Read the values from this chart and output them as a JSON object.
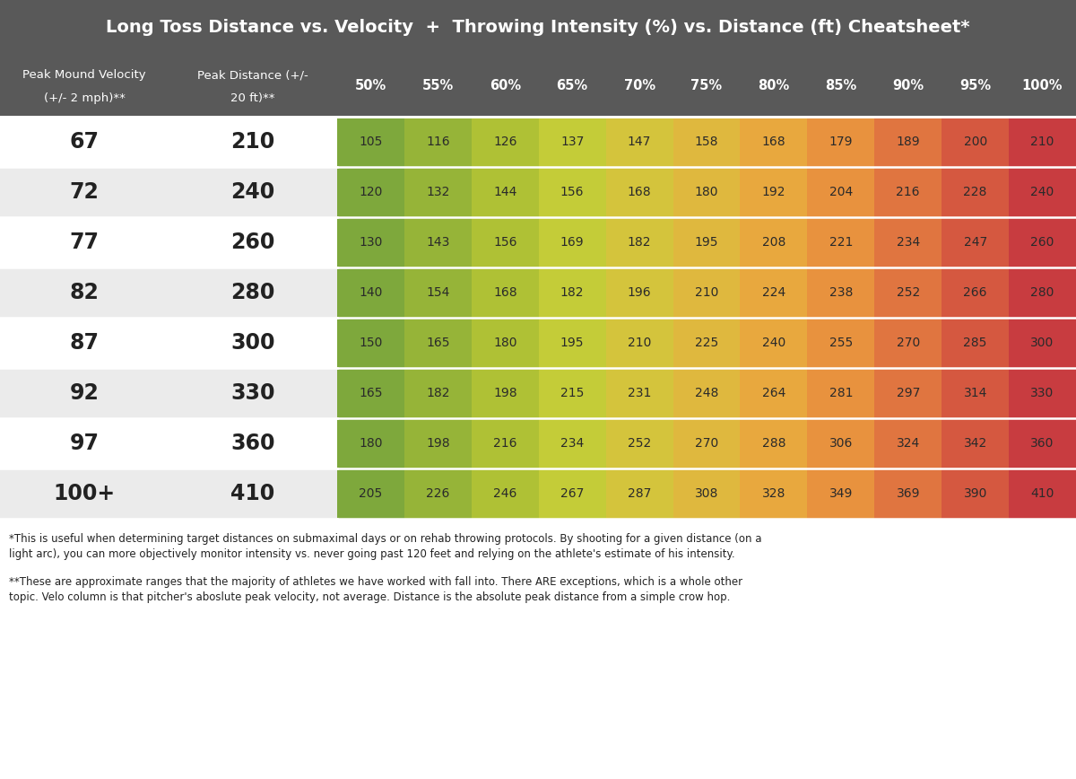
{
  "title": "Long Toss Distance vs. Velocity  +  Throwing Intensity (%) vs. Distance (ft) Cheatsheet*",
  "title_color": "#FFFFFF",
  "header_bg": "#595959",
  "col1_header_line1": "Peak Mound Velocity",
  "col1_header_line2": "(+/- 2 mph)**",
  "col2_header_line1": "Peak Distance (+/-",
  "col2_header_line2": "20 ft)**",
  "intensity_headers": [
    "50%",
    "55%",
    "60%",
    "65%",
    "70%",
    "75%",
    "80%",
    "85%",
    "90%",
    "95%",
    "100%"
  ],
  "velocities": [
    "67",
    "72",
    "77",
    "82",
    "87",
    "92",
    "97",
    "100+"
  ],
  "peak_distances": [
    "210",
    "240",
    "260",
    "280",
    "300",
    "330",
    "360",
    "410"
  ],
  "table_data": [
    [
      105,
      116,
      126,
      137,
      147,
      158,
      168,
      179,
      189,
      200,
      210
    ],
    [
      120,
      132,
      144,
      156,
      168,
      180,
      192,
      204,
      216,
      228,
      240
    ],
    [
      130,
      143,
      156,
      169,
      182,
      195,
      208,
      221,
      234,
      247,
      260
    ],
    [
      140,
      154,
      168,
      182,
      196,
      210,
      224,
      238,
      252,
      266,
      280
    ],
    [
      150,
      165,
      180,
      195,
      210,
      225,
      240,
      255,
      270,
      285,
      300
    ],
    [
      165,
      182,
      198,
      215,
      231,
      248,
      264,
      281,
      297,
      314,
      330
    ],
    [
      180,
      198,
      216,
      234,
      252,
      270,
      288,
      306,
      324,
      342,
      360
    ],
    [
      205,
      226,
      246,
      267,
      287,
      308,
      328,
      349,
      369,
      390,
      410
    ]
  ],
  "cell_colors": [
    [
      "#7ea83c",
      "#96b438",
      "#afc135",
      "#c4cc38",
      "#d4c43c",
      "#dfb83e",
      "#e8a83e",
      "#e8923e",
      "#e07540",
      "#d55840",
      "#c83c40"
    ],
    [
      "#7ea83c",
      "#96b438",
      "#afc135",
      "#c4cc38",
      "#d4c43c",
      "#dfb83e",
      "#e8a83e",
      "#e8923e",
      "#e07540",
      "#d55840",
      "#c83c40"
    ],
    [
      "#7ea83c",
      "#96b438",
      "#afc135",
      "#c4cc38",
      "#d4c43c",
      "#dfb83e",
      "#e8a83e",
      "#e8923e",
      "#e07540",
      "#d55840",
      "#c83c40"
    ],
    [
      "#7ea83c",
      "#96b438",
      "#afc135",
      "#c4cc38",
      "#d4c43c",
      "#dfb83e",
      "#e8a83e",
      "#e8923e",
      "#e07540",
      "#d55840",
      "#c83c40"
    ],
    [
      "#7ea83c",
      "#96b438",
      "#afc135",
      "#c4cc38",
      "#d4c43c",
      "#dfb83e",
      "#e8a83e",
      "#e8923e",
      "#e07540",
      "#d55840",
      "#c83c40"
    ],
    [
      "#7ea83c",
      "#96b438",
      "#afc135",
      "#c4cc38",
      "#d4c43c",
      "#dfb83e",
      "#e8a83e",
      "#e8923e",
      "#e07540",
      "#d55840",
      "#c83c40"
    ],
    [
      "#7ea83c",
      "#96b438",
      "#afc135",
      "#c4cc38",
      "#d4c43c",
      "#dfb83e",
      "#e8a83e",
      "#e8923e",
      "#e07540",
      "#d55840",
      "#c83c40"
    ],
    [
      "#7ea83c",
      "#96b438",
      "#afc135",
      "#c4cc38",
      "#d4c43c",
      "#dfb83e",
      "#e8a83e",
      "#e8923e",
      "#e07540",
      "#d55840",
      "#c83c40"
    ]
  ],
  "row_bg_colors": [
    "#ffffff",
    "#ebebeb",
    "#ffffff",
    "#ebebeb",
    "#ffffff",
    "#ebebeb",
    "#ffffff",
    "#ebebeb"
  ],
  "footnote1": "*This is useful when determining target distances on submaximal days or on rehab throwing protocols. By shooting for a given distance (on a",
  "footnote1b": "light arc), you can more objectively monitor intensity vs. never going past 120 feet and relying on the athlete's estimate of his intensity.",
  "footnote2": "**These are approximate ranges that the majority of athletes we have worked with fall into. There ARE exceptions, which is a whole other",
  "footnote2b": "topic. Velo column is that pitcher's aboslute peak velocity, not average. Distance is the absolute peak distance from a simple crow hop.",
  "bg_color": "#ffffff"
}
